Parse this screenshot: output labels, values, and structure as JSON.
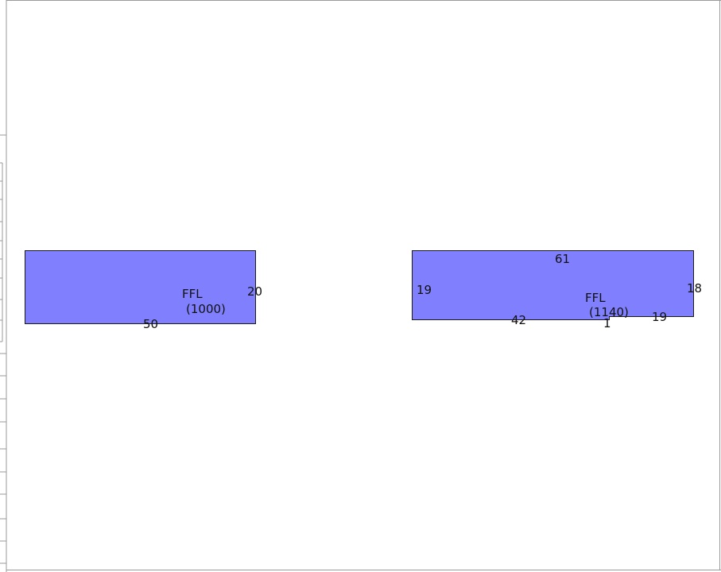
{
  "colors": {
    "room_fill": "#8080FF",
    "room_stroke": "#1a1a1a",
    "frame": "#9a9a9a",
    "background": "#ffffff"
  },
  "rooms": [
    {
      "name": "left",
      "label": "FFL",
      "level": "(1000)",
      "dimensions": {
        "bottom": "50",
        "right": "20"
      }
    },
    {
      "name": "right",
      "label": "FFL",
      "level": "(1140)",
      "dimensions": {
        "top": "61",
        "left": "19",
        "right": "18",
        "bottom": "42",
        "bottom_small": "1",
        "bottom_right": "19"
      }
    }
  ]
}
